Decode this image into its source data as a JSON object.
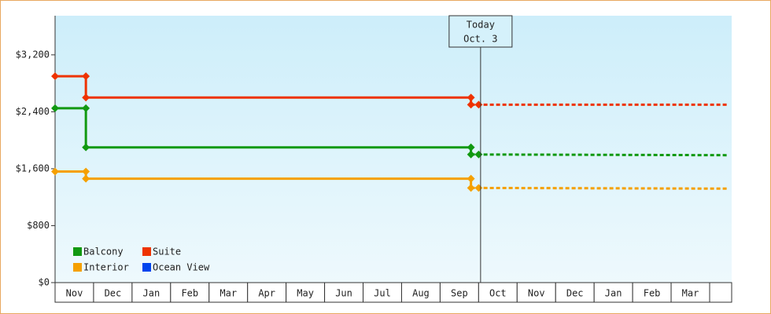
{
  "chart_data": {
    "type": "step-line",
    "categories": [
      "Nov",
      "Dec",
      "Jan",
      "Feb",
      "Mar",
      "Apr",
      "May",
      "Jun",
      "Jul",
      "Aug",
      "Sep",
      "Oct",
      "Nov",
      "Dec",
      "Jan",
      "Feb",
      "Mar"
    ],
    "xlim": [
      0,
      17.57
    ],
    "ylim": [
      0,
      3750
    ],
    "yticks": [
      {
        "value": 0,
        "label": "$0"
      },
      {
        "value": 800,
        "label": "$800"
      },
      {
        "value": 1600,
        "label": "$1,600"
      },
      {
        "value": 2400,
        "label": "$2,400"
      },
      {
        "value": 3200,
        "label": "$3,200"
      }
    ],
    "today": {
      "label": [
        "Today",
        "Oct. 3"
      ],
      "x": 11.05
    },
    "series": [
      {
        "name": "Balcony",
        "color": "#119911",
        "x": [
          0,
          0.8,
          0.8,
          10.8,
          10.8
        ],
        "values": [
          2450,
          2450,
          1900,
          1900,
          1800
        ],
        "forecast_x": [
          10.8,
          11.0,
          17.5
        ],
        "forecast_values": [
          1800,
          1800,
          1790
        ]
      },
      {
        "name": "Suite",
        "color": "#ee3300",
        "x": [
          0,
          0.8,
          0.8,
          10.8,
          10.8
        ],
        "values": [
          2900,
          2900,
          2600,
          2600,
          2500
        ],
        "forecast_x": [
          10.8,
          11.0,
          17.5
        ],
        "forecast_values": [
          2500,
          2500,
          2500
        ]
      },
      {
        "name": "Interior",
        "color": "#f5a000",
        "x": [
          0,
          0.8,
          0.8,
          10.8,
          10.8
        ],
        "values": [
          1560,
          1560,
          1460,
          1460,
          1330
        ],
        "forecast_x": [
          10.8,
          11.0,
          17.5
        ],
        "forecast_values": [
          1330,
          1330,
          1320
        ]
      },
      {
        "name": "Ocean View",
        "color": "#0044ee",
        "x": [],
        "values": [],
        "forecast_x": [],
        "forecast_values": []
      }
    ]
  }
}
